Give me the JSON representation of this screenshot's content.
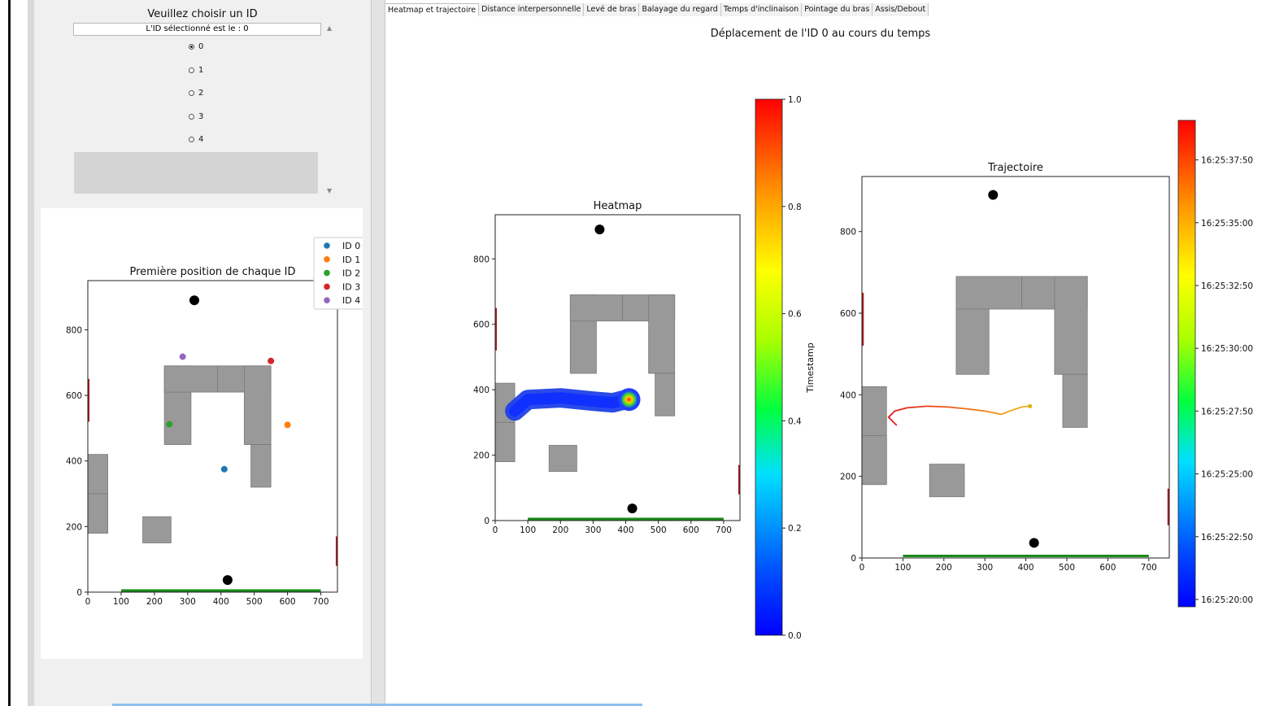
{
  "left_panel": {
    "title": "Veuillez choisir un ID",
    "selected_text": "L'ID sélectionné est le : 0",
    "radio_options": [
      "0",
      "1",
      "2",
      "3",
      "4"
    ],
    "selected_id": "0"
  },
  "tabs": [
    "Heatmap et trajectoire",
    "Distance interpersonnelle",
    "Levé de bras",
    "Balayage du regard",
    "Temps d'inclinaison",
    "Pointage du bras",
    "Assis/Debout"
  ],
  "active_tab": 0,
  "main_title": "Déplacement de l'ID 0 au cours du temps",
  "chart_data": [
    {
      "type": "scatter",
      "title": "Première position de chaque ID",
      "xlim": [
        0,
        750
      ],
      "ylim": [
        0,
        950
      ],
      "xticks": [
        "0",
        "100",
        "200",
        "300",
        "400",
        "500",
        "600",
        "700"
      ],
      "yticks": [
        "0",
        "200",
        "400",
        "600",
        "800"
      ],
      "legend_placement": "top-right",
      "series": [
        {
          "name": "ID 0",
          "color": "#1f77b4",
          "points": [
            [
              410,
              375
            ]
          ]
        },
        {
          "name": "ID 1",
          "color": "#ff7f0e",
          "points": [
            [
              600,
              510
            ]
          ]
        },
        {
          "name": "ID 2",
          "color": "#2ca02c",
          "points": [
            [
              245,
              512
            ]
          ]
        },
        {
          "name": "ID 3",
          "color": "#d62728",
          "points": [
            [
              550,
              705
            ]
          ]
        },
        {
          "name": "ID 4",
          "color": "#9467bd",
          "points": [
            [
              285,
              718
            ]
          ]
        }
      ]
    },
    {
      "type": "heatmap",
      "title": "Heatmap",
      "xlim": [
        0,
        750
      ],
      "ylim": [
        0,
        935
      ],
      "xticks": [
        "0",
        "100",
        "200",
        "300",
        "400",
        "500",
        "600",
        "700"
      ],
      "yticks": [
        "0",
        "200",
        "400",
        "600",
        "800"
      ],
      "path": [
        [
          60,
          335
        ],
        [
          100,
          370
        ],
        [
          200,
          375
        ],
        [
          300,
          365
        ],
        [
          360,
          360
        ],
        [
          400,
          370
        ],
        [
          410,
          370
        ]
      ],
      "hotspot": [
        410,
        370
      ],
      "colorbar": {
        "label": "Timestamp",
        "min": 0.0,
        "max": 1.0,
        "ticks": [
          "0.0",
          "0.2",
          "0.4",
          "0.6",
          "0.8",
          "1.0"
        ]
      }
    },
    {
      "type": "line",
      "title": "Trajectoire",
      "xlim": [
        0,
        750
      ],
      "ylim": [
        0,
        935
      ],
      "xticks": [
        "0",
        "100",
        "200",
        "300",
        "400",
        "500",
        "600",
        "700"
      ],
      "yticks": [
        "0",
        "200",
        "400",
        "600",
        "800"
      ],
      "points": [
        [
          85,
          325
        ],
        [
          70,
          340
        ],
        [
          65,
          345
        ],
        [
          80,
          360
        ],
        [
          110,
          368
        ],
        [
          160,
          372
        ],
        [
          210,
          370
        ],
        [
          260,
          365
        ],
        [
          300,
          360
        ],
        [
          340,
          352
        ],
        [
          360,
          360
        ],
        [
          390,
          370
        ],
        [
          405,
          372
        ],
        [
          410,
          372
        ]
      ],
      "colorbar": {
        "ticks": [
          "16:25:20:00",
          "16:25:22:50",
          "16:25:25:00",
          "16:25:27:50",
          "16:25:30:00",
          "16:25:32:50",
          "16:25:35:00",
          "16:25:37:50"
        ]
      }
    }
  ]
}
